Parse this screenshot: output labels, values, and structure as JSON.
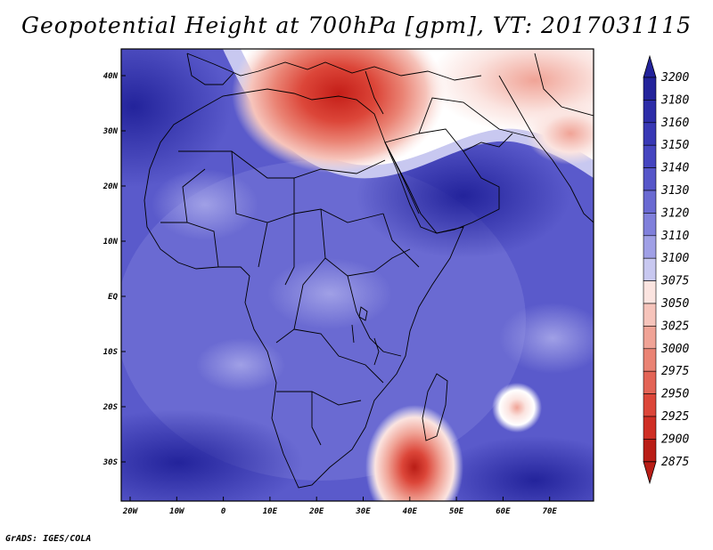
{
  "title": "Geopotential Height at 700hPa [gpm], VT: 2017031115",
  "credit": "GrADS: IGES/COLA",
  "lat_labels": [
    "40N",
    "30N",
    "20N",
    "10N",
    "EQ",
    "10S",
    "20S",
    "30S"
  ],
  "lon_labels": [
    "20W",
    "10W",
    "0",
    "10E",
    "20E",
    "30E",
    "40E",
    "50E",
    "60E",
    "70E"
  ],
  "colorbar": {
    "levels": [
      "3200",
      "3180",
      "3160",
      "3150",
      "3140",
      "3130",
      "3120",
      "3110",
      "3100",
      "3075",
      "3050",
      "3025",
      "3000",
      "2975",
      "2950",
      "2925",
      "2900",
      "2875"
    ],
    "colors": [
      "#23239b",
      "#2d2da8",
      "#3838b5",
      "#4545c0",
      "#5656c9",
      "#6a6ad2",
      "#8080db",
      "#a0a0e6",
      "#c8c8f0",
      "#fbe4e0",
      "#f6c4bb",
      "#f0a396",
      "#ea8374",
      "#e36456",
      "#dc4639",
      "#cf2e24",
      "#b91d16"
    ]
  },
  "map_colors": {
    "ocean_deep": "#2d2da8",
    "ocean": "#4545c0",
    "land_mid": "#6a6ad2",
    "land_light": "#8080db",
    "land_pale": "#a0a0e6",
    "high_core": "#cf2e24",
    "high_mid": "#ea8374",
    "high_outer": "#fbe4e0",
    "white_band": "#ffffff"
  }
}
